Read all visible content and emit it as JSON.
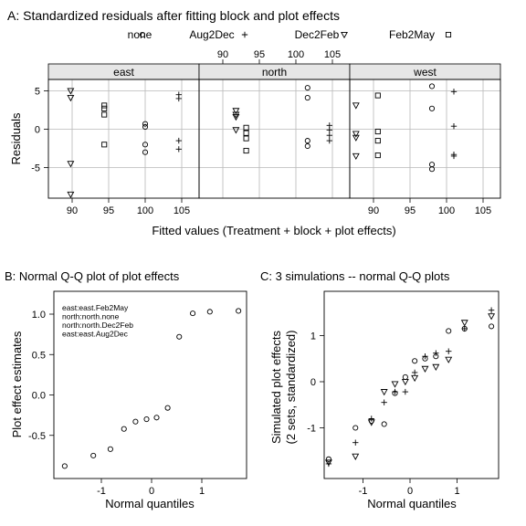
{
  "chart_data": [
    {
      "type": "scatter",
      "title": "A: Standardized residuals after fitting block and plot effects",
      "xlabel": "Fitted values (Treatment + block + plot effects)",
      "ylabel": "Residuals",
      "xlim": [
        85.5,
        105.5
      ],
      "ylim": [
        -9.5,
        8.5
      ],
      "xticks": [
        90,
        95,
        100,
        105
      ],
      "yticks": [
        -5,
        0,
        5
      ],
      "grid": true,
      "legend_position": "top",
      "legend": [
        {
          "name": "none",
          "symbol": "circle"
        },
        {
          "name": "Aug2Dec",
          "symbol": "plus"
        },
        {
          "name": "Dec2Feb",
          "symbol": "triangle"
        },
        {
          "name": "Feb2May",
          "symbol": "square"
        }
      ],
      "panels": [
        {
          "name": "east",
          "series": [
            {
              "name": "none",
              "points": [
                [
                  100,
                  0.7
                ],
                [
                  100,
                  0.3
                ],
                [
                  100,
                  -2.0
                ],
                [
                  100,
                  -3.0
                ]
              ]
            },
            {
              "name": "Aug2Dec",
              "points": [
                [
                  104.6,
                  4.5
                ],
                [
                  104.6,
                  4.0
                ],
                [
                  104.6,
                  -1.5
                ],
                [
                  104.6,
                  -2.6
                ]
              ]
            },
            {
              "name": "Dec2Feb",
              "points": [
                [
                  89.8,
                  5.0
                ],
                [
                  89.8,
                  4.1
                ],
                [
                  89.8,
                  -4.5
                ],
                [
                  89.8,
                  -8.5
                ]
              ]
            },
            {
              "name": "Feb2May",
              "points": [
                [
                  94.4,
                  3.1
                ],
                [
                  94.4,
                  2.7
                ],
                [
                  94.4,
                  1.9
                ],
                [
                  94.4,
                  -2.0
                ]
              ]
            }
          ]
        },
        {
          "name": "north",
          "series": [
            {
              "name": "none",
              "points": [
                [
                  101.6,
                  5.4
                ],
                [
                  101.6,
                  4.1
                ],
                [
                  101.6,
                  -1.5
                ],
                [
                  101.6,
                  -2.2
                ]
              ]
            },
            {
              "name": "Aug2Dec",
              "points": [
                [
                  104.6,
                  0.5
                ],
                [
                  104.6,
                  -0.1
                ],
                [
                  104.6,
                  -0.8
                ],
                [
                  104.6,
                  -1.5
                ]
              ]
            },
            {
              "name": "Dec2Feb",
              "points": [
                [
                  91.8,
                  2.4
                ],
                [
                  91.8,
                  1.9
                ],
                [
                  91.8,
                  1.6
                ],
                [
                  91.8,
                  -0.1
                ]
              ]
            },
            {
              "name": "Feb2May",
              "points": [
                [
                  93.2,
                  0.2
                ],
                [
                  93.2,
                  -0.5
                ],
                [
                  93.2,
                  -1.2
                ],
                [
                  93.2,
                  -2.8
                ]
              ]
            }
          ]
        },
        {
          "name": "west",
          "series": [
            {
              "name": "none",
              "points": [
                [
                  98.0,
                  5.6
                ],
                [
                  98.0,
                  2.7
                ],
                [
                  98.0,
                  -4.6
                ],
                [
                  98.0,
                  -5.2
                ]
              ]
            },
            {
              "name": "Aug2Dec",
              "points": [
                [
                  101.0,
                  4.9
                ],
                [
                  101.0,
                  0.4
                ],
                [
                  101.0,
                  -3.3
                ],
                [
                  101.0,
                  -3.5
                ]
              ]
            },
            {
              "name": "Dec2Feb",
              "points": [
                [
                  87.6,
                  3.1
                ],
                [
                  87.6,
                  -0.6
                ],
                [
                  87.6,
                  -1.1
                ],
                [
                  87.6,
                  -3.5
                ]
              ]
            },
            {
              "name": "Feb2May",
              "points": [
                [
                  90.6,
                  4.4
                ],
                [
                  90.6,
                  -0.3
                ],
                [
                  90.6,
                  -1.5
                ],
                [
                  90.6,
                  -3.4
                ]
              ]
            }
          ]
        }
      ]
    },
    {
      "type": "scatter",
      "title": "B: Normal Q-Q plot of plot effects",
      "xlabel": "Normal quantiles",
      "ylabel": "Plot effect estimates",
      "xlim": [
        -2.05,
        2.05
      ],
      "ylim": [
        -0.97,
        1.15
      ],
      "xticks": [
        -1,
        0,
        1
      ],
      "yticks": [
        -0.5,
        0.0,
        0.5,
        1.0
      ],
      "ytick_labels": [
        "-0.5",
        "0.0",
        "0.5",
        "1.0"
      ],
      "annotation": [
        "east:east.Feb2May",
        "north:north.none",
        "north:north.Dec2Feb",
        "east:east.Aug2Dec"
      ],
      "x": [
        -1.73,
        -1.16,
        -0.82,
        -0.55,
        -0.32,
        -0.1,
        0.1,
        0.32,
        0.55,
        0.82,
        1.16,
        1.73
      ],
      "y": [
        -0.88,
        -0.75,
        -0.67,
        -0.42,
        -0.33,
        -0.3,
        -0.28,
        -0.16,
        0.72,
        1.01,
        1.03,
        1.04
      ]
    },
    {
      "type": "scatter",
      "title": "C: 3 simulations -- normal Q-Q plots",
      "xlabel": "Normal quantiles",
      "ylabel": "Simulated plot effects",
      "ylabel2": "(2 sets, standardized)",
      "xlim": [
        -2.05,
        2.05
      ],
      "ylim": [
        -2.0,
        1.8
      ],
      "xticks": [
        -1,
        0,
        1
      ],
      "yticks": [
        -1,
        0,
        1
      ],
      "x": [
        -1.73,
        -1.16,
        -0.82,
        -0.55,
        -0.32,
        -0.1,
        0.1,
        0.32,
        0.55,
        0.82,
        1.16,
        1.73
      ],
      "series": [
        {
          "symbol": "circle",
          "y": [
            -1.68,
            -1.0,
            -0.85,
            -0.92,
            -0.25,
            0.1,
            0.45,
            0.5,
            0.55,
            1.1,
            1.15,
            1.2
          ]
        },
        {
          "symbol": "plus",
          "y": [
            -1.78,
            -1.32,
            -0.8,
            -0.45,
            -0.22,
            -0.22,
            0.2,
            0.55,
            0.62,
            0.66,
            1.15,
            1.55
          ]
        },
        {
          "symbol": "triangle",
          "y": [
            -1.75,
            -1.62,
            -0.88,
            -0.22,
            -0.05,
            0.0,
            0.08,
            0.28,
            0.32,
            0.48,
            1.28,
            1.42
          ]
        }
      ]
    }
  ]
}
